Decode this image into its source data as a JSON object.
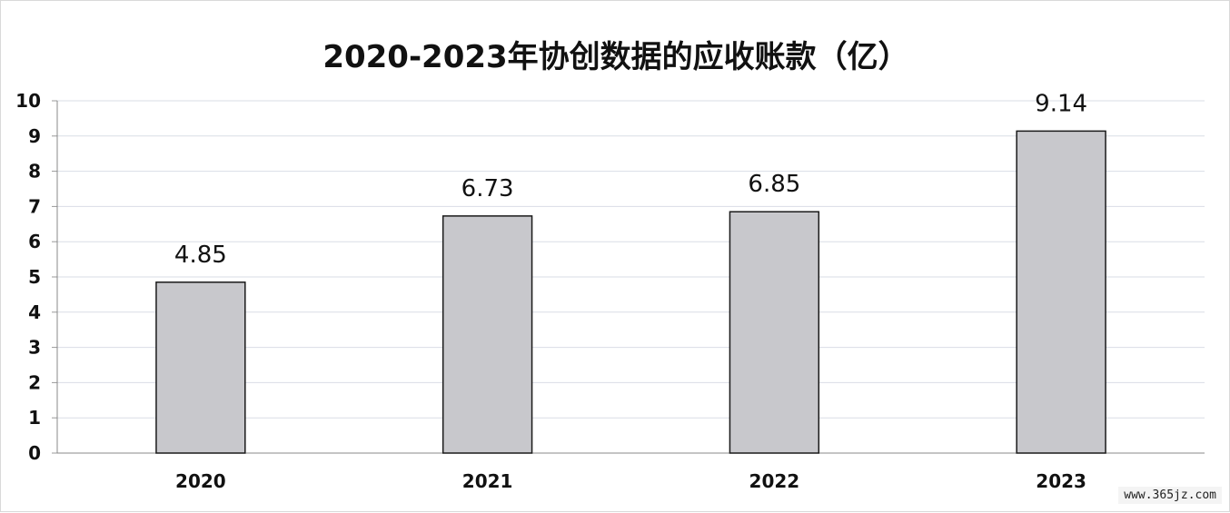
{
  "chart_data": {
    "type": "bar",
    "title": "2020-2023年协创数据的应收账款（亿）",
    "categories": [
      "2020",
      "2021",
      "2022",
      "2023"
    ],
    "values": [
      4.85,
      6.73,
      6.85,
      9.14
    ],
    "value_labels": [
      "4.85",
      "6.73",
      "6.85",
      "9.14"
    ],
    "y_ticks": [
      0,
      1,
      2,
      3,
      4,
      5,
      6,
      7,
      8,
      9,
      10
    ],
    "ylim": [
      0,
      10
    ],
    "grid": true,
    "bar_color": "#c8c8cc",
    "bar_edge_color": "#1a1a1a",
    "grid_color": "#d9dde6"
  },
  "watermark": "www.365jz.com"
}
